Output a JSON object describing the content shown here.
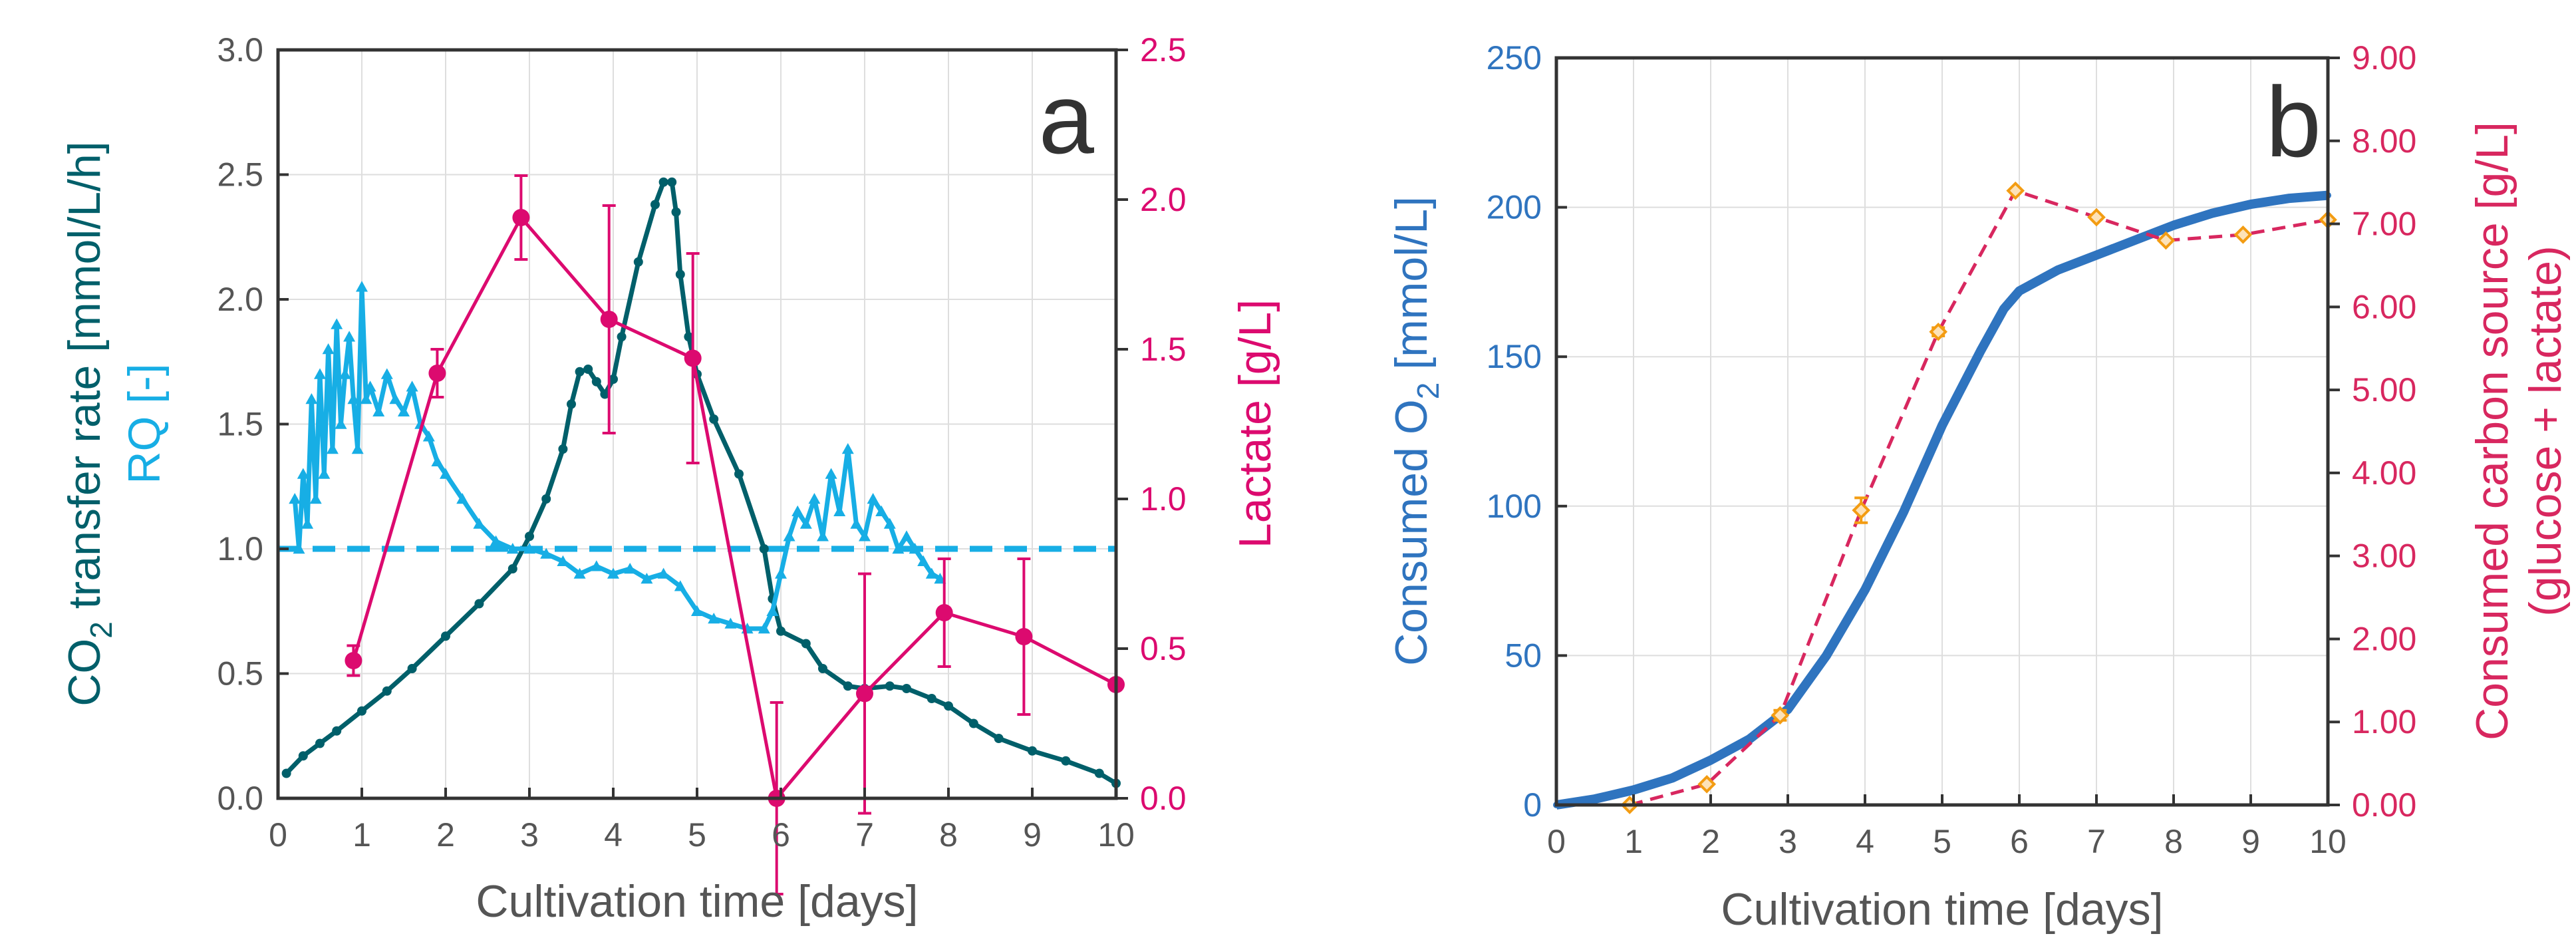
{
  "colors": {
    "co2": "#005f6a",
    "rq": "#17aee5",
    "lactate": "#dc0a6f",
    "o2": "#2f74bf",
    "carbon": "#d8275f",
    "carbon_marker": "#f39c12",
    "axis_dark": "#555555"
  },
  "chart_data": [
    {
      "panel_label": "a",
      "type": "line",
      "xlabel": "Cultivation time   [days]",
      "ylabel_left_co2": "CO",
      "ylabel_left_co2_sub": "2",
      "ylabel_left_co2_rest": " transfer rate  [mmol/L/h]",
      "ylabel_left_rq": "RQ [-]",
      "ylabel_right": "Lactate   [g/L]",
      "xlim": [
        0,
        10
      ],
      "ylim_left": [
        0,
        3
      ],
      "ylim_right": [
        0,
        2.5
      ],
      "x_ticks": [
        "0",
        "1",
        "2",
        "3",
        "4",
        "5",
        "6",
        "7",
        "8",
        "9",
        "10"
      ],
      "y_left_ticks": [
        "0.0",
        "0.5",
        "1.0",
        "1.5",
        "2.0",
        "2.5",
        "3.0"
      ],
      "y_right_ticks": [
        "0.0",
        "0.5",
        "1.0",
        "1.5",
        "2.0",
        "2.5"
      ],
      "grid": true,
      "reference_line": {
        "y": 1.0,
        "axis": "left",
        "style": "dashed"
      },
      "series": [
        {
          "key": "co2",
          "axis": "left",
          "x": [
            0.1,
            0.3,
            0.5,
            0.7,
            1.0,
            1.3,
            1.6,
            2.0,
            2.4,
            2.8,
            3.0,
            3.2,
            3.4,
            3.5,
            3.6,
            3.7,
            3.8,
            3.9,
            4.0,
            4.1,
            4.3,
            4.5,
            4.6,
            4.7,
            4.75,
            4.8,
            4.9,
            5.0,
            5.2,
            5.5,
            5.8,
            5.9,
            6.0,
            6.3,
            6.5,
            6.8,
            7.0,
            7.3,
            7.5,
            7.8,
            8.0,
            8.3,
            8.6,
            9.0,
            9.4,
            9.8,
            10.0
          ],
          "y": [
            0.1,
            0.17,
            0.22,
            0.27,
            0.35,
            0.43,
            0.52,
            0.65,
            0.78,
            0.92,
            1.05,
            1.2,
            1.4,
            1.58,
            1.71,
            1.72,
            1.67,
            1.62,
            1.68,
            1.85,
            2.15,
            2.38,
            2.47,
            2.47,
            2.35,
            2.1,
            1.85,
            1.7,
            1.52,
            1.3,
            1.0,
            0.8,
            0.67,
            0.62,
            0.52,
            0.45,
            0.44,
            0.45,
            0.44,
            0.4,
            0.37,
            0.3,
            0.24,
            0.19,
            0.15,
            0.1,
            0.06
          ]
        },
        {
          "key": "rq",
          "axis": "left",
          "x": [
            0.2,
            0.25,
            0.3,
            0.35,
            0.4,
            0.45,
            0.5,
            0.55,
            0.6,
            0.65,
            0.7,
            0.75,
            0.8,
            0.85,
            0.9,
            0.95,
            1.0,
            1.05,
            1.1,
            1.2,
            1.3,
            1.4,
            1.5,
            1.6,
            1.7,
            1.8,
            1.9,
            2.0,
            2.2,
            2.4,
            2.6,
            2.8,
            3.0,
            3.2,
            3.4,
            3.6,
            3.8,
            4.0,
            4.2,
            4.4,
            4.6,
            4.8,
            5.0,
            5.2,
            5.4,
            5.6,
            5.8,
            5.9,
            6.0,
            6.1,
            6.2,
            6.3,
            6.4,
            6.5,
            6.6,
            6.7,
            6.8,
            6.9,
            7.0,
            7.1,
            7.2,
            7.3,
            7.4,
            7.5,
            7.6,
            7.7,
            7.8,
            7.9
          ],
          "y": [
            1.2,
            1.0,
            1.3,
            1.1,
            1.6,
            1.2,
            1.7,
            1.3,
            1.8,
            1.4,
            1.9,
            1.5,
            1.7,
            1.85,
            1.6,
            1.4,
            2.05,
            1.6,
            1.65,
            1.55,
            1.7,
            1.6,
            1.55,
            1.65,
            1.5,
            1.45,
            1.35,
            1.3,
            1.2,
            1.1,
            1.03,
            1.0,
            1.0,
            0.98,
            0.95,
            0.9,
            0.93,
            0.9,
            0.92,
            0.88,
            0.9,
            0.85,
            0.75,
            0.72,
            0.7,
            0.68,
            0.68,
            0.75,
            0.9,
            1.05,
            1.15,
            1.1,
            1.2,
            1.05,
            1.3,
            1.15,
            1.4,
            1.1,
            1.05,
            1.2,
            1.15,
            1.1,
            1.0,
            1.05,
            1.0,
            0.95,
            0.9,
            0.88
          ]
        },
        {
          "key": "lactate",
          "axis": "right",
          "x": [
            0.9,
            1.9,
            2.9,
            3.95,
            4.95,
            5.95,
            7.0,
            7.95,
            8.9,
            10.0
          ],
          "y": [
            0.46,
            1.42,
            1.94,
            1.6,
            1.47,
            0.0,
            0.35,
            0.62,
            0.54,
            0.38
          ],
          "err": [
            0.05,
            0.08,
            0.14,
            0.38,
            0.35,
            0.32,
            0.4,
            0.18,
            0.26,
            0
          ]
        }
      ]
    },
    {
      "panel_label": "b",
      "type": "line",
      "xlabel": "Cultivation time   [days]",
      "ylabel_left": "Consumed O",
      "ylabel_left_sub": "2",
      "ylabel_left_rest": "  [mmol/L]",
      "ylabel_right_line1": "Consumed  carbon source   [g/L]",
      "ylabel_right_line2": "(glucose + lactate)",
      "xlim": [
        0,
        10
      ],
      "ylim_left": [
        0,
        250
      ],
      "ylim_right": [
        0,
        9
      ],
      "x_ticks": [
        "0",
        "1",
        "2",
        "3",
        "4",
        "5",
        "6",
        "7",
        "8",
        "9",
        "10"
      ],
      "y_left_ticks": [
        "0",
        "50",
        "100",
        "150",
        "200",
        "250"
      ],
      "y_right_ticks": [
        "0.00",
        "1.00",
        "2.00",
        "3.00",
        "4.00",
        "5.00",
        "6.00",
        "7.00",
        "8.00",
        "9.00"
      ],
      "grid": true,
      "series": [
        {
          "key": "o2",
          "axis": "left",
          "x": [
            0,
            0.5,
            1.0,
            1.5,
            2.0,
            2.5,
            3.0,
            3.5,
            4.0,
            4.5,
            5.0,
            5.5,
            5.8,
            6.0,
            6.5,
            7.0,
            7.5,
            8.0,
            8.5,
            9.0,
            9.5,
            10.0
          ],
          "y": [
            0,
            2,
            5,
            9,
            15,
            22,
            32,
            50,
            72,
            98,
            127,
            152,
            166,
            172,
            179,
            184,
            189,
            194,
            198,
            201,
            203,
            204
          ]
        },
        {
          "key": "carbon",
          "axis": "right",
          "x": [
            0.95,
            1.95,
            2.9,
            3.95,
            4.95,
            5.95,
            7.0,
            7.9,
            8.9,
            10.0
          ],
          "y": [
            0.0,
            0.25,
            1.08,
            3.55,
            5.7,
            7.4,
            7.08,
            6.8,
            6.87,
            7.05
          ],
          "err": [
            0,
            0,
            0.06,
            0.15,
            0.05,
            0,
            0,
            0,
            0,
            0
          ]
        }
      ]
    }
  ]
}
